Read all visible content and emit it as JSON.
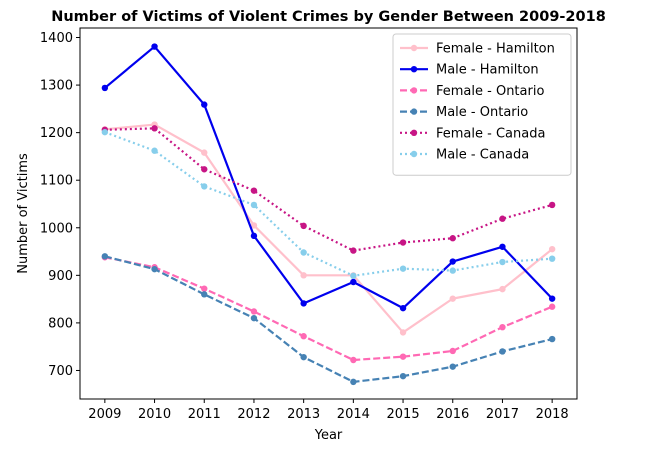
{
  "chart_data": {
    "type": "line",
    "title": "Number of Victims of Violent Crimes by Gender Between 2009-2018",
    "xlabel": "Year",
    "ylabel": "Number of Victims",
    "x": [
      2009,
      2010,
      2011,
      2012,
      2013,
      2014,
      2015,
      2016,
      2017,
      2018
    ],
    "xlim": [
      2008.5,
      2018.5
    ],
    "ylim": [
      640,
      1420
    ],
    "yticks": [
      700,
      800,
      900,
      1000,
      1100,
      1200,
      1300,
      1400
    ],
    "grid": false,
    "legend_position": "top-right",
    "series": [
      {
        "name": "Female - Hamilton",
        "color": "#ffc0cb",
        "style": "solid",
        "values": [
          1207,
          1217,
          1158,
          1005,
          900,
          900,
          780,
          851,
          871,
          955
        ]
      },
      {
        "name": "Male - Hamilton",
        "color": "#0000ee",
        "style": "solid",
        "values": [
          1294,
          1381,
          1259,
          983,
          841,
          886,
          831,
          929,
          960,
          851
        ]
      },
      {
        "name": "Female - Ontario",
        "color": "#ff69b4",
        "style": "dashed",
        "values": [
          938,
          917,
          872,
          824,
          772,
          722,
          729,
          741,
          791,
          834
        ]
      },
      {
        "name": "Male - Ontario",
        "color": "#4682b4",
        "style": "dashed",
        "values": [
          940,
          913,
          860,
          810,
          728,
          676,
          688,
          708,
          740,
          766
        ]
      },
      {
        "name": "Female - Canada",
        "color": "#c71585",
        "style": "dotted",
        "values": [
          1206,
          1209,
          1123,
          1078,
          1004,
          952,
          969,
          978,
          1019,
          1048
        ]
      },
      {
        "name": "Male - Canada",
        "color": "#87ceeb",
        "style": "dotted",
        "values": [
          1201,
          1162,
          1087,
          1048,
          948,
          899,
          914,
          910,
          928,
          935
        ]
      }
    ]
  }
}
